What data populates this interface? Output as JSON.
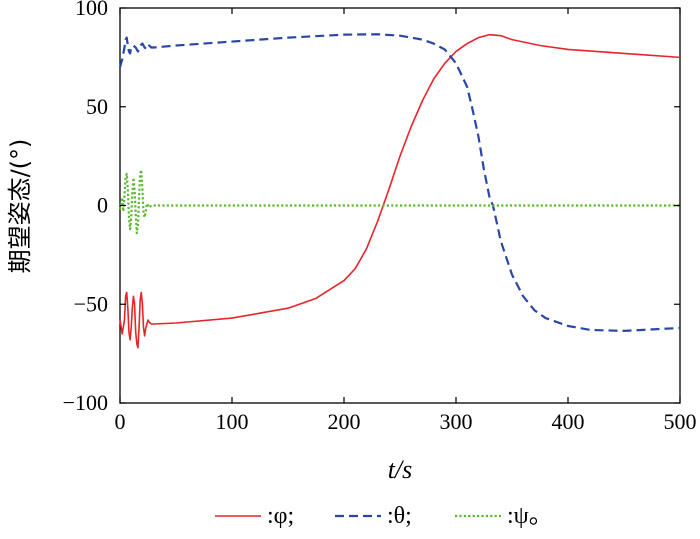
{
  "chart_data": {
    "type": "line",
    "title": "",
    "xlabel": "t/s",
    "ylabel": "期望姿态/(°)",
    "xlim": [
      0,
      500
    ],
    "ylim": [
      -100,
      100
    ],
    "xticks": [
      0,
      100,
      200,
      300,
      400,
      500
    ],
    "yticks": [
      -100,
      -50,
      0,
      50,
      100
    ],
    "xtick_labels": [
      "0",
      "100",
      "200",
      "300",
      "400",
      "500"
    ],
    "ytick_labels": [
      "−100",
      "−50",
      "0",
      "50",
      "100"
    ],
    "grid": false,
    "legend_position": "bottom",
    "series": [
      {
        "name": ":φ;",
        "color": "#e8242a",
        "style": "solid",
        "points": [
          [
            0,
            -58
          ],
          [
            2,
            -65
          ],
          [
            4,
            -58
          ],
          [
            5,
            -46
          ],
          [
            6,
            -44
          ],
          [
            7,
            -52
          ],
          [
            8,
            -64
          ],
          [
            9,
            -68
          ],
          [
            10,
            -62
          ],
          [
            11,
            -52
          ],
          [
            12,
            -46
          ],
          [
            13,
            -50
          ],
          [
            14,
            -64
          ],
          [
            15,
            -70
          ],
          [
            16,
            -72
          ],
          [
            17,
            -62
          ],
          [
            18,
            -48
          ],
          [
            19,
            -44
          ],
          [
            20,
            -50
          ],
          [
            21,
            -62
          ],
          [
            22,
            -66
          ],
          [
            23,
            -62
          ],
          [
            24,
            -60
          ],
          [
            25,
            -58
          ],
          [
            26,
            -59
          ],
          [
            28,
            -60
          ],
          [
            30,
            -60
          ],
          [
            50,
            -59.5
          ],
          [
            100,
            -57
          ],
          [
            150,
            -52
          ],
          [
            175,
            -47
          ],
          [
            200,
            -38
          ],
          [
            210,
            -32
          ],
          [
            220,
            -22
          ],
          [
            230,
            -8
          ],
          [
            235,
            0
          ],
          [
            240,
            8
          ],
          [
            250,
            25
          ],
          [
            260,
            40
          ],
          [
            270,
            53
          ],
          [
            280,
            64
          ],
          [
            290,
            72
          ],
          [
            300,
            78
          ],
          [
            310,
            82
          ],
          [
            320,
            85
          ],
          [
            330,
            86.5
          ],
          [
            340,
            86
          ],
          [
            350,
            84
          ],
          [
            375,
            81
          ],
          [
            400,
            79
          ],
          [
            450,
            77
          ],
          [
            500,
            75
          ]
        ]
      },
      {
        "name": ":θ;",
        "color": "#2a46a8",
        "style": "dashed",
        "points": [
          [
            0,
            70
          ],
          [
            2,
            74
          ],
          [
            4,
            80
          ],
          [
            5,
            84
          ],
          [
            6,
            85
          ],
          [
            7,
            81
          ],
          [
            8,
            78
          ],
          [
            9,
            77
          ],
          [
            10,
            80
          ],
          [
            12,
            81
          ],
          [
            14,
            80
          ],
          [
            16,
            78
          ],
          [
            18,
            81
          ],
          [
            20,
            82
          ],
          [
            22,
            80
          ],
          [
            24,
            79
          ],
          [
            26,
            81
          ],
          [
            28,
            80
          ],
          [
            30,
            80
          ],
          [
            50,
            81
          ],
          [
            100,
            83
          ],
          [
            150,
            85
          ],
          [
            200,
            86.5
          ],
          [
            230,
            86.7
          ],
          [
            250,
            86
          ],
          [
            270,
            84
          ],
          [
            280,
            82
          ],
          [
            290,
            79
          ],
          [
            300,
            72
          ],
          [
            310,
            60
          ],
          [
            315,
            48
          ],
          [
            320,
            35
          ],
          [
            325,
            18
          ],
          [
            330,
            4
          ],
          [
            333,
            0
          ],
          [
            340,
            -18
          ],
          [
            350,
            -35
          ],
          [
            360,
            -46
          ],
          [
            370,
            -53
          ],
          [
            380,
            -57
          ],
          [
            400,
            -61
          ],
          [
            420,
            -63
          ],
          [
            450,
            -63.5
          ],
          [
            500,
            -62
          ]
        ]
      },
      {
        "name": ":ψ。",
        "color": "#5cb82c",
        "style": "dotted",
        "points": [
          [
            0,
            -2
          ],
          [
            2,
            4
          ],
          [
            3,
            -3
          ],
          [
            4,
            5
          ],
          [
            5,
            14
          ],
          [
            6,
            16
          ],
          [
            7,
            8
          ],
          [
            8,
            -6
          ],
          [
            9,
            -12
          ],
          [
            10,
            -6
          ],
          [
            11,
            6
          ],
          [
            12,
            14
          ],
          [
            13,
            8
          ],
          [
            14,
            -4
          ],
          [
            15,
            -14
          ],
          [
            16,
            -10
          ],
          [
            17,
            4
          ],
          [
            18,
            16
          ],
          [
            19,
            18
          ],
          [
            20,
            8
          ],
          [
            21,
            -4
          ],
          [
            22,
            -6
          ],
          [
            23,
            -3
          ],
          [
            24,
            1
          ],
          [
            25,
            0
          ],
          [
            26,
            -1
          ],
          [
            28,
            0
          ],
          [
            30,
            0
          ],
          [
            100,
            0
          ],
          [
            200,
            0
          ],
          [
            300,
            0
          ],
          [
            400,
            0
          ],
          [
            500,
            0
          ]
        ]
      }
    ]
  }
}
